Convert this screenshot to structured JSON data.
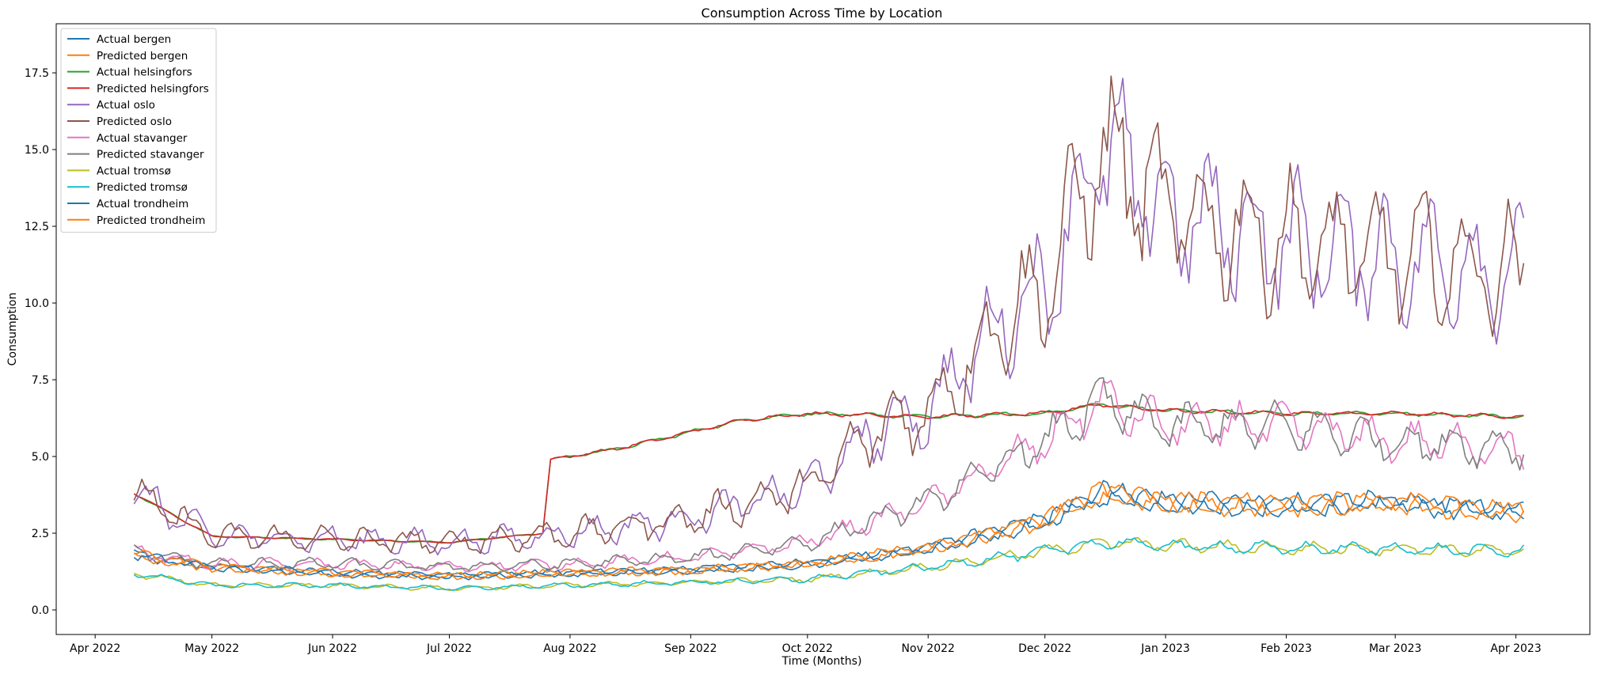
{
  "chart_data": {
    "type": "line",
    "title": "Consumption Across Time by Location",
    "xlabel": "Time (Months)",
    "ylabel": "Consumption",
    "xlim": [
      "2022-03-22",
      "2023-04-20"
    ],
    "ylim": [
      -0.8,
      19.1
    ],
    "x_ticks": [
      {
        "date": "2022-04-01",
        "label": "Apr 2022"
      },
      {
        "date": "2022-05-01",
        "label": "May 2022"
      },
      {
        "date": "2022-06-01",
        "label": "Jun 2022"
      },
      {
        "date": "2022-07-01",
        "label": "Jul 2022"
      },
      {
        "date": "2022-08-01",
        "label": "Aug 2022"
      },
      {
        "date": "2022-09-01",
        "label": "Sep 2022"
      },
      {
        "date": "2022-10-01",
        "label": "Oct 2022"
      },
      {
        "date": "2022-11-01",
        "label": "Nov 2022"
      },
      {
        "date": "2022-12-01",
        "label": "Dec 2022"
      },
      {
        "date": "2023-01-01",
        "label": "Jan 2023"
      },
      {
        "date": "2023-02-01",
        "label": "Feb 2023"
      },
      {
        "date": "2023-03-01",
        "label": "Mar 2023"
      },
      {
        "date": "2023-04-01",
        "label": "Apr 2023"
      }
    ],
    "y_ticks": [
      {
        "value": 0.0,
        "label": "0.0"
      },
      {
        "value": 2.5,
        "label": "2.5"
      },
      {
        "value": 5.0,
        "label": "5.0"
      },
      {
        "value": 7.5,
        "label": "7.5"
      },
      {
        "value": 10.0,
        "label": "10.0"
      },
      {
        "value": 12.5,
        "label": "12.5"
      },
      {
        "value": 15.0,
        "label": "15.0"
      },
      {
        "value": 17.5,
        "label": "17.5"
      }
    ],
    "grid": false,
    "legend_position": "top-left",
    "series": [
      {
        "name": "Actual bergen",
        "color": "#1f77b4",
        "x": [
          "2022-04-11",
          "2022-05-01",
          "2022-06-01",
          "2022-07-01",
          "2022-08-01",
          "2022-09-01",
          "2022-10-01",
          "2022-11-01",
          "2022-12-01",
          "2022-12-15",
          "2023-01-01",
          "2023-02-01",
          "2023-03-01",
          "2023-04-01",
          "2023-04-03"
        ],
        "y": [
          1.8,
          1.4,
          1.2,
          1.1,
          1.2,
          1.3,
          1.5,
          2.0,
          2.9,
          3.8,
          3.5,
          3.4,
          3.5,
          3.2,
          3.3
        ]
      },
      {
        "name": "Predicted bergen",
        "color": "#ff7f0e",
        "x": [
          "2022-04-11",
          "2022-05-01",
          "2022-06-01",
          "2022-07-01",
          "2022-08-01",
          "2022-09-01",
          "2022-10-01",
          "2022-11-01",
          "2022-12-01",
          "2022-12-15",
          "2023-01-01",
          "2023-02-01",
          "2023-03-01",
          "2023-04-01",
          "2023-04-03"
        ],
        "y": [
          1.8,
          1.4,
          1.2,
          1.1,
          1.2,
          1.3,
          1.5,
          2.0,
          2.9,
          3.8,
          3.5,
          3.4,
          3.5,
          3.2,
          3.3
        ]
      },
      {
        "name": "Actual helsingfors",
        "color": "#2ca02c",
        "x": [
          "2022-04-11",
          "2022-05-01",
          "2022-06-01",
          "2022-07-01",
          "2022-07-25",
          "2022-07-27",
          "2022-08-01",
          "2022-08-15",
          "2022-09-01",
          "2022-09-15",
          "2022-10-01",
          "2022-11-01",
          "2022-12-01",
          "2022-12-15",
          "2023-01-01",
          "2023-02-01",
          "2023-03-01",
          "2023-04-03"
        ],
        "y": [
          3.8,
          2.4,
          2.3,
          2.2,
          2.5,
          4.9,
          5.0,
          5.3,
          5.8,
          6.2,
          6.4,
          6.3,
          6.4,
          6.7,
          6.5,
          6.4,
          6.4,
          6.3
        ]
      },
      {
        "name": "Predicted helsingfors",
        "color": "#d62728",
        "x": [
          "2022-04-11",
          "2022-05-01",
          "2022-06-01",
          "2022-07-01",
          "2022-07-25",
          "2022-07-27",
          "2022-08-01",
          "2022-08-15",
          "2022-09-01",
          "2022-09-15",
          "2022-10-01",
          "2022-11-01",
          "2022-12-01",
          "2022-12-15",
          "2023-01-01",
          "2023-02-01",
          "2023-03-01",
          "2023-04-03"
        ],
        "y": [
          3.8,
          2.4,
          2.3,
          2.2,
          2.5,
          4.9,
          5.0,
          5.3,
          5.8,
          6.2,
          6.4,
          6.3,
          6.4,
          6.7,
          6.5,
          6.4,
          6.4,
          6.3
        ]
      },
      {
        "name": "Actual oslo",
        "color": "#9467bd",
        "x": [
          "2022-04-11",
          "2022-05-01",
          "2022-06-01",
          "2022-07-01",
          "2022-08-01",
          "2022-09-01",
          "2022-10-01",
          "2022-10-20",
          "2022-11-01",
          "2022-11-20",
          "2022-12-01",
          "2022-12-15",
          "2023-01-01",
          "2023-02-01",
          "2023-03-01",
          "2023-04-03"
        ],
        "y": [
          3.8,
          2.4,
          2.3,
          2.2,
          2.5,
          3.0,
          4.0,
          6.0,
          6.5,
          9.5,
          10.5,
          15.0,
          13.0,
          12.0,
          11.5,
          11.0
        ]
      },
      {
        "name": "Predicted oslo",
        "color": "#8c564b",
        "x": [
          "2022-04-11",
          "2022-05-01",
          "2022-06-01",
          "2022-07-01",
          "2022-08-01",
          "2022-09-01",
          "2022-10-01",
          "2022-10-20",
          "2022-11-01",
          "2022-11-20",
          "2022-12-01",
          "2022-12-15",
          "2023-01-01",
          "2023-02-01",
          "2023-03-01",
          "2023-04-03"
        ],
        "y": [
          3.8,
          2.4,
          2.3,
          2.2,
          2.5,
          3.0,
          4.0,
          6.0,
          6.5,
          9.5,
          10.5,
          15.0,
          13.0,
          12.0,
          11.5,
          11.0
        ]
      },
      {
        "name": "Actual stavanger",
        "color": "#e377c2",
        "x": [
          "2022-04-11",
          "2022-05-01",
          "2022-06-01",
          "2022-07-01",
          "2022-08-01",
          "2022-09-01",
          "2022-10-01",
          "2022-11-01",
          "2022-12-01",
          "2022-12-15",
          "2023-01-01",
          "2023-02-01",
          "2023-03-01",
          "2023-04-03"
        ],
        "y": [
          1.9,
          1.5,
          1.5,
          1.4,
          1.5,
          1.7,
          2.2,
          3.5,
          5.5,
          6.8,
          6.0,
          6.0,
          5.5,
          5.3
        ]
      },
      {
        "name": "Predicted stavanger",
        "color": "#7f7f7f",
        "x": [
          "2022-04-11",
          "2022-05-01",
          "2022-06-01",
          "2022-07-01",
          "2022-08-01",
          "2022-09-01",
          "2022-10-01",
          "2022-11-01",
          "2022-12-01",
          "2022-12-15",
          "2023-01-01",
          "2023-02-01",
          "2023-03-01",
          "2023-04-03"
        ],
        "y": [
          1.9,
          1.5,
          1.5,
          1.4,
          1.5,
          1.7,
          2.2,
          3.5,
          5.5,
          6.8,
          6.0,
          6.0,
          5.5,
          5.3
        ]
      },
      {
        "name": "Actual tromsø",
        "color": "#bcbd22",
        "x": [
          "2022-04-11",
          "2022-05-01",
          "2022-06-01",
          "2022-07-01",
          "2022-08-01",
          "2022-09-01",
          "2022-10-01",
          "2022-11-01",
          "2022-12-01",
          "2022-12-15",
          "2023-01-01",
          "2023-02-01",
          "2023-03-01",
          "2023-04-03"
        ],
        "y": [
          1.2,
          0.8,
          0.8,
          0.7,
          0.8,
          0.9,
          1.0,
          1.4,
          1.9,
          2.2,
          2.1,
          2.0,
          2.0,
          1.9
        ]
      },
      {
        "name": "Predicted tromsø",
        "color": "#17becf",
        "x": [
          "2022-04-11",
          "2022-05-01",
          "2022-06-01",
          "2022-07-01",
          "2022-08-01",
          "2022-09-01",
          "2022-10-01",
          "2022-11-01",
          "2022-12-01",
          "2022-12-15",
          "2023-01-01",
          "2023-02-01",
          "2023-03-01",
          "2023-04-03"
        ],
        "y": [
          1.2,
          0.8,
          0.8,
          0.7,
          0.8,
          0.9,
          1.0,
          1.4,
          1.9,
          2.2,
          2.1,
          2.0,
          2.0,
          1.9
        ]
      },
      {
        "name": "Actual trondheim",
        "color": "#1f77b4",
        "x": [
          "2022-04-11",
          "2022-05-01",
          "2022-06-01",
          "2022-07-01",
          "2022-08-01",
          "2022-09-01",
          "2022-10-01",
          "2022-11-01",
          "2022-12-01",
          "2022-12-15",
          "2023-01-01",
          "2023-02-01",
          "2023-03-01",
          "2023-04-01",
          "2023-04-03"
        ],
        "y": [
          1.8,
          1.4,
          1.2,
          1.1,
          1.2,
          1.3,
          1.5,
          2.0,
          2.9,
          3.8,
          3.5,
          3.4,
          3.5,
          3.2,
          3.3
        ]
      },
      {
        "name": "Predicted trondheim",
        "color": "#ff7f0e",
        "x": [
          "2022-04-11",
          "2022-05-01",
          "2022-06-01",
          "2022-07-01",
          "2022-08-01",
          "2022-09-01",
          "2022-10-01",
          "2022-11-01",
          "2022-12-01",
          "2022-12-15",
          "2023-01-01",
          "2023-02-01",
          "2023-03-01",
          "2023-04-01",
          "2023-04-03"
        ],
        "y": [
          1.8,
          1.4,
          1.2,
          1.1,
          1.2,
          1.3,
          1.5,
          2.0,
          2.9,
          3.8,
          3.5,
          3.4,
          3.5,
          3.2,
          3.3
        ]
      }
    ]
  }
}
